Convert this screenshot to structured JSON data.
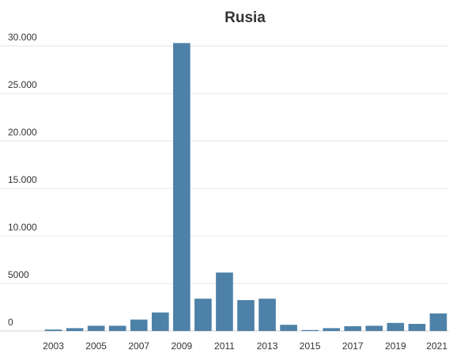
{
  "chart_data": {
    "type": "bar",
    "title": "Rusia",
    "xlabel": "",
    "ylabel": "",
    "categories": [
      "2003",
      "2004",
      "2005",
      "2006",
      "2007",
      "2008",
      "2009",
      "2010",
      "2011",
      "2012",
      "2013",
      "2014",
      "2015",
      "2016",
      "2017",
      "2018",
      "2019",
      "2020",
      "2021"
    ],
    "values": [
      150,
      300,
      550,
      550,
      1200,
      1950,
      30300,
      3400,
      6150,
      3250,
      3400,
      650,
      100,
      300,
      500,
      550,
      850,
      750,
      1850
    ],
    "ylim": [
      0,
      30000
    ],
    "yticks": [
      0,
      5000,
      10000,
      15000,
      20000,
      25000,
      30000
    ],
    "ytick_labels": [
      "0",
      "5000",
      "10.000",
      "15.000",
      "20.000",
      "25.000",
      "30.000"
    ],
    "xtick_labels_shown": [
      "2003",
      "2005",
      "2007",
      "2009",
      "2011",
      "2013",
      "2015",
      "2017",
      "2019",
      "2021"
    ],
    "bar_color": "#4e81a8",
    "grid": true
  }
}
